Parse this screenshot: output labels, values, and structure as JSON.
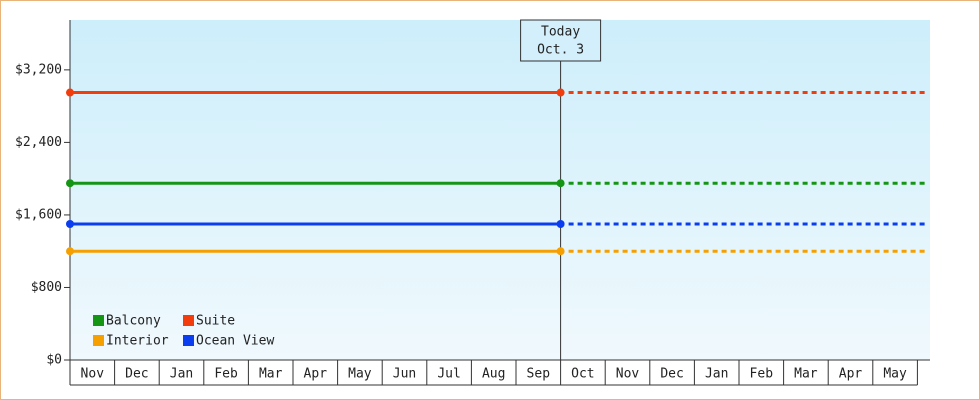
{
  "chart_data": {
    "type": "line",
    "annotation": {
      "title": "Today",
      "date": "Oct. 3"
    },
    "categories": [
      "Nov",
      "Dec",
      "Jan",
      "Feb",
      "Mar",
      "Apr",
      "May",
      "Jun",
      "Jul",
      "Aug",
      "Sep",
      "Oct",
      "Nov",
      "Dec",
      "Jan",
      "Feb",
      "Mar",
      "Apr",
      "May"
    ],
    "series": [
      {
        "name": "Balcony",
        "color": "#149614",
        "value": 1950
      },
      {
        "name": "Suite",
        "color": "#f23c0c",
        "value": 2950
      },
      {
        "name": "Interior",
        "color": "#f5a000",
        "value": 1200
      },
      {
        "name": "Ocean View",
        "color": "#0a3cf0",
        "value": 1500
      }
    ],
    "ylim": [
      0,
      3750
    ],
    "yticks": [
      {
        "value": 0,
        "label": "$0"
      },
      {
        "value": 800,
        "label": "$800"
      },
      {
        "value": 1600,
        "label": "$1,600"
      },
      {
        "value": 2400,
        "label": "$2,400"
      },
      {
        "value": 3200,
        "label": "$3,200"
      }
    ]
  }
}
